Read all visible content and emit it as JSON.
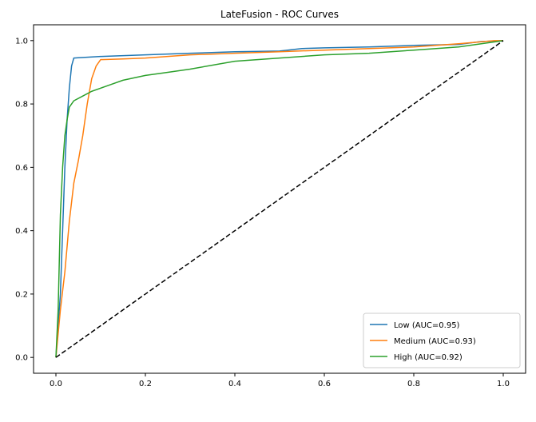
{
  "chart_data": {
    "type": "line",
    "title": "LateFusion - ROC Curves",
    "xlabel": "",
    "ylabel": "",
    "xlim": [
      -0.05,
      1.05
    ],
    "ylim": [
      -0.05,
      1.05
    ],
    "xticks": [
      0.0,
      0.2,
      0.4,
      0.6,
      0.8,
      1.0
    ],
    "yticks": [
      0.0,
      0.2,
      0.4,
      0.6,
      0.8,
      1.0
    ],
    "xtick_labels": [
      "0.0",
      "0.2",
      "0.4",
      "0.6",
      "0.8",
      "1.0"
    ],
    "ytick_labels": [
      "0.0",
      "0.2",
      "0.4",
      "0.6",
      "0.8",
      "1.0"
    ],
    "grid": false,
    "legend_position": "lower-right",
    "series": [
      {
        "name": "Low (AUC=0.95)",
        "color": "#1f77b4",
        "x": [
          0.0,
          0.005,
          0.01,
          0.015,
          0.02,
          0.025,
          0.03,
          0.035,
          0.04,
          0.05,
          0.1,
          0.2,
          0.3,
          0.4,
          0.5,
          0.55,
          0.6,
          0.7,
          0.8,
          0.9,
          0.95,
          1.0
        ],
        "y": [
          0.0,
          0.1,
          0.2,
          0.4,
          0.6,
          0.75,
          0.85,
          0.92,
          0.945,
          0.946,
          0.95,
          0.955,
          0.96,
          0.965,
          0.967,
          0.975,
          0.977,
          0.98,
          0.985,
          0.988,
          0.997,
          1.0
        ]
      },
      {
        "name": "Medium (AUC=0.93)",
        "color": "#ff7f0e",
        "x": [
          0.0,
          0.01,
          0.02,
          0.03,
          0.04,
          0.05,
          0.06,
          0.07,
          0.08,
          0.09,
          0.1,
          0.15,
          0.2,
          0.3,
          0.4,
          0.5,
          0.6,
          0.7,
          0.8,
          0.9,
          0.98,
          1.0
        ],
        "y": [
          0.0,
          0.15,
          0.27,
          0.43,
          0.55,
          0.62,
          0.7,
          0.8,
          0.88,
          0.92,
          0.94,
          0.942,
          0.945,
          0.955,
          0.96,
          0.965,
          0.97,
          0.975,
          0.98,
          0.99,
          1.0,
          1.0
        ]
      },
      {
        "name": "High (AUC=0.92)",
        "color": "#2ca02c",
        "x": [
          0.0,
          0.005,
          0.01,
          0.015,
          0.02,
          0.025,
          0.03,
          0.04,
          0.06,
          0.08,
          0.1,
          0.12,
          0.15,
          0.2,
          0.25,
          0.3,
          0.4,
          0.5,
          0.6,
          0.7,
          0.8,
          0.9,
          1.0
        ],
        "y": [
          0.0,
          0.15,
          0.45,
          0.6,
          0.7,
          0.75,
          0.79,
          0.81,
          0.825,
          0.84,
          0.85,
          0.86,
          0.875,
          0.89,
          0.9,
          0.91,
          0.935,
          0.945,
          0.955,
          0.96,
          0.97,
          0.98,
          1.0
        ]
      }
    ],
    "reference_line": {
      "x": [
        0.0,
        1.0
      ],
      "y": [
        0.0,
        1.0
      ],
      "color": "#000000",
      "style": "dashed"
    }
  }
}
